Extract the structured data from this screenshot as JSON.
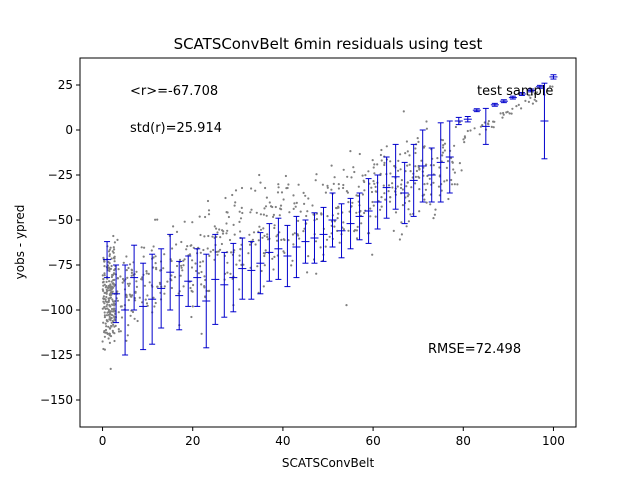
{
  "chart_data": {
    "type": "scatter",
    "title": "SCATSConvBelt 6min residuals using test",
    "xlabel": "SCATSConvBelt",
    "ylabel": "yobs - ypred",
    "xlim": [
      -5,
      105
    ],
    "ylim": [
      -165,
      40
    ],
    "x_ticks": [
      0,
      20,
      40,
      60,
      80,
      100
    ],
    "y_ticks": [
      25,
      0,
      -25,
      -50,
      -75,
      -100,
      -125,
      -150
    ],
    "grid": false,
    "annotations": {
      "mean": "<r>=-67.708",
      "std": "std(r)=25.914",
      "legend": "test sample",
      "rmse": "RMSE=72.498"
    },
    "colors": {
      "points": "#808080",
      "errorbars": "#0000cc",
      "axes": "#000000"
    },
    "scatter_trend": {
      "intercept": -94,
      "slope": 0.98,
      "scatter_sd": 14
    },
    "errorbars": [
      {
        "x": 1,
        "y": -72,
        "err": 10
      },
      {
        "x": 3,
        "y": -91,
        "err": 16
      },
      {
        "x": 5,
        "y": -100,
        "err": 25
      },
      {
        "x": 7,
        "y": -82,
        "err": 18
      },
      {
        "x": 9,
        "y": -98,
        "err": 24
      },
      {
        "x": 11,
        "y": -94,
        "err": 25
      },
      {
        "x": 13,
        "y": -88,
        "err": 22
      },
      {
        "x": 15,
        "y": -79,
        "err": 21
      },
      {
        "x": 17,
        "y": -92,
        "err": 19
      },
      {
        "x": 19,
        "y": -84,
        "err": 14
      },
      {
        "x": 21,
        "y": -82,
        "err": 16
      },
      {
        "x": 23,
        "y": -95,
        "err": 26
      },
      {
        "x": 25,
        "y": -83,
        "err": 25
      },
      {
        "x": 27,
        "y": -86,
        "err": 18
      },
      {
        "x": 29,
        "y": -82,
        "err": 19
      },
      {
        "x": 31,
        "y": -77,
        "err": 17
      },
      {
        "x": 33,
        "y": -78,
        "err": 16
      },
      {
        "x": 35,
        "y": -74,
        "err": 17
      },
      {
        "x": 37,
        "y": -68,
        "err": 16
      },
      {
        "x": 39,
        "y": -66,
        "err": 17
      },
      {
        "x": 41,
        "y": -70,
        "err": 17
      },
      {
        "x": 43,
        "y": -65,
        "err": 17
      },
      {
        "x": 45,
        "y": -62,
        "err": 12
      },
      {
        "x": 47,
        "y": -60,
        "err": 14
      },
      {
        "x": 49,
        "y": -58,
        "err": 15
      },
      {
        "x": 51,
        "y": -50,
        "err": 15
      },
      {
        "x": 53,
        "y": -56,
        "err": 15
      },
      {
        "x": 55,
        "y": -52,
        "err": 14
      },
      {
        "x": 57,
        "y": -48,
        "err": 13
      },
      {
        "x": 59,
        "y": -45,
        "err": 18
      },
      {
        "x": 61,
        "y": -40,
        "err": 15
      },
      {
        "x": 63,
        "y": -32,
        "err": 17
      },
      {
        "x": 65,
        "y": -26,
        "err": 18
      },
      {
        "x": 67,
        "y": -35,
        "err": 17
      },
      {
        "x": 69,
        "y": -28,
        "err": 20
      },
      {
        "x": 71,
        "y": -20,
        "err": 20
      },
      {
        "x": 73,
        "y": -25,
        "err": 15
      },
      {
        "x": 75,
        "y": -18,
        "err": 22
      },
      {
        "x": 77,
        "y": -15,
        "err": 20
      },
      {
        "x": 79,
        "y": 5,
        "err": 2
      },
      {
        "x": 81,
        "y": 6,
        "err": 1.5
      },
      {
        "x": 83,
        "y": 11,
        "err": 0.8
      },
      {
        "x": 85,
        "y": 2,
        "err": 10
      },
      {
        "x": 87,
        "y": 14,
        "err": 0.8
      },
      {
        "x": 89,
        "y": 16,
        "err": 0.8
      },
      {
        "x": 91,
        "y": 18,
        "err": 0.8
      },
      {
        "x": 93,
        "y": 20,
        "err": 0.8
      },
      {
        "x": 95,
        "y": 22,
        "err": 0.8
      },
      {
        "x": 97,
        "y": 24,
        "err": 0.8
      },
      {
        "x": 98,
        "y": 5,
        "err": 21
      },
      {
        "x": 100,
        "y": 29.5,
        "err": 1.2
      }
    ]
  }
}
